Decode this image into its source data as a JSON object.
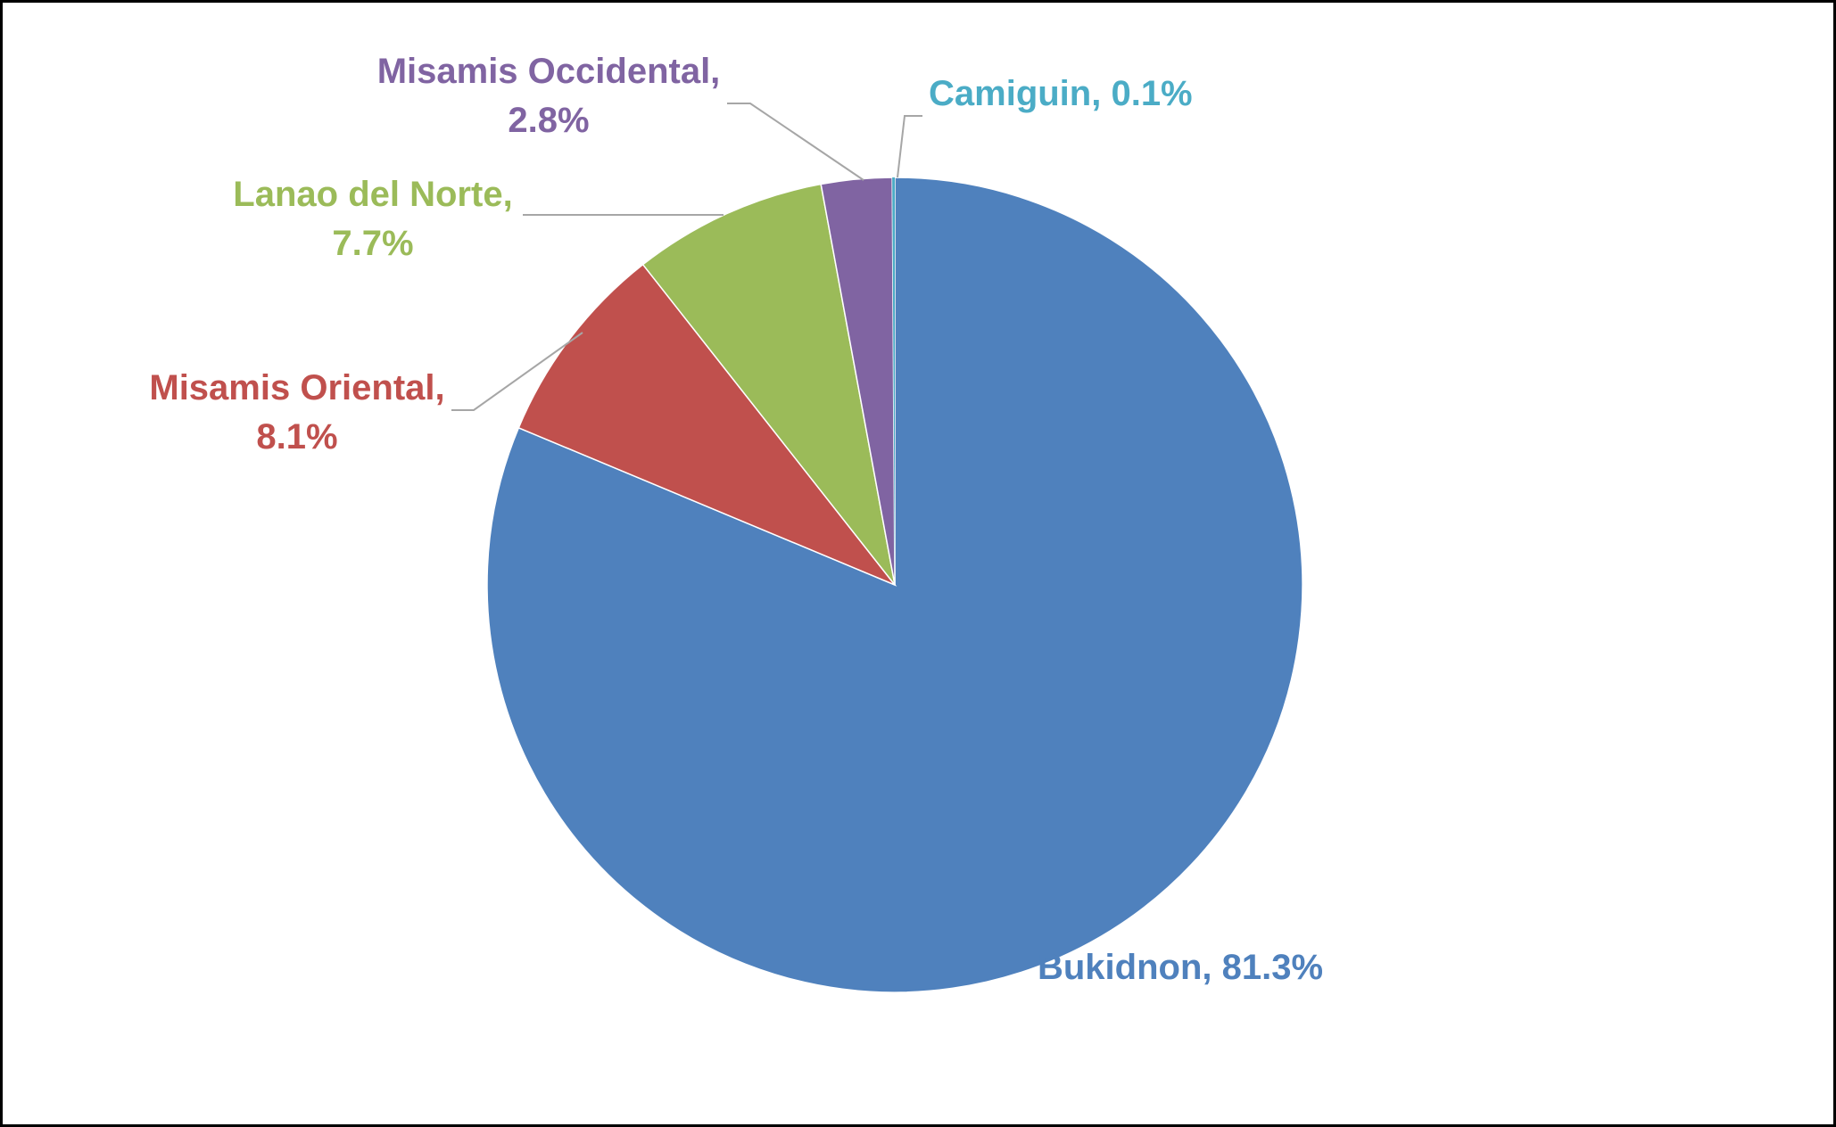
{
  "chart_data": {
    "type": "pie",
    "title": "",
    "start_angle_deg": 0,
    "direction": "clockwise",
    "slices": [
      {
        "label": "Bukidnon",
        "value": 81.3,
        "display": "81.3%",
        "color": "#4F81BD"
      },
      {
        "label": "Misamis Oriental",
        "value": 8.1,
        "display": "8.1%",
        "color": "#C0504D"
      },
      {
        "label": "Lanao del Norte",
        "value": 7.7,
        "display": "7.7%",
        "color": "#9BBB59"
      },
      {
        "label": "Misamis Occidental",
        "value": 2.8,
        "display": "2.8%",
        "color": "#8064A2"
      },
      {
        "label": "Camiguin",
        "value": 0.1,
        "display": "0.1%",
        "color": "#4BACC6"
      }
    ],
    "data_labels": "category name and percentage, outside with leader lines"
  }
}
